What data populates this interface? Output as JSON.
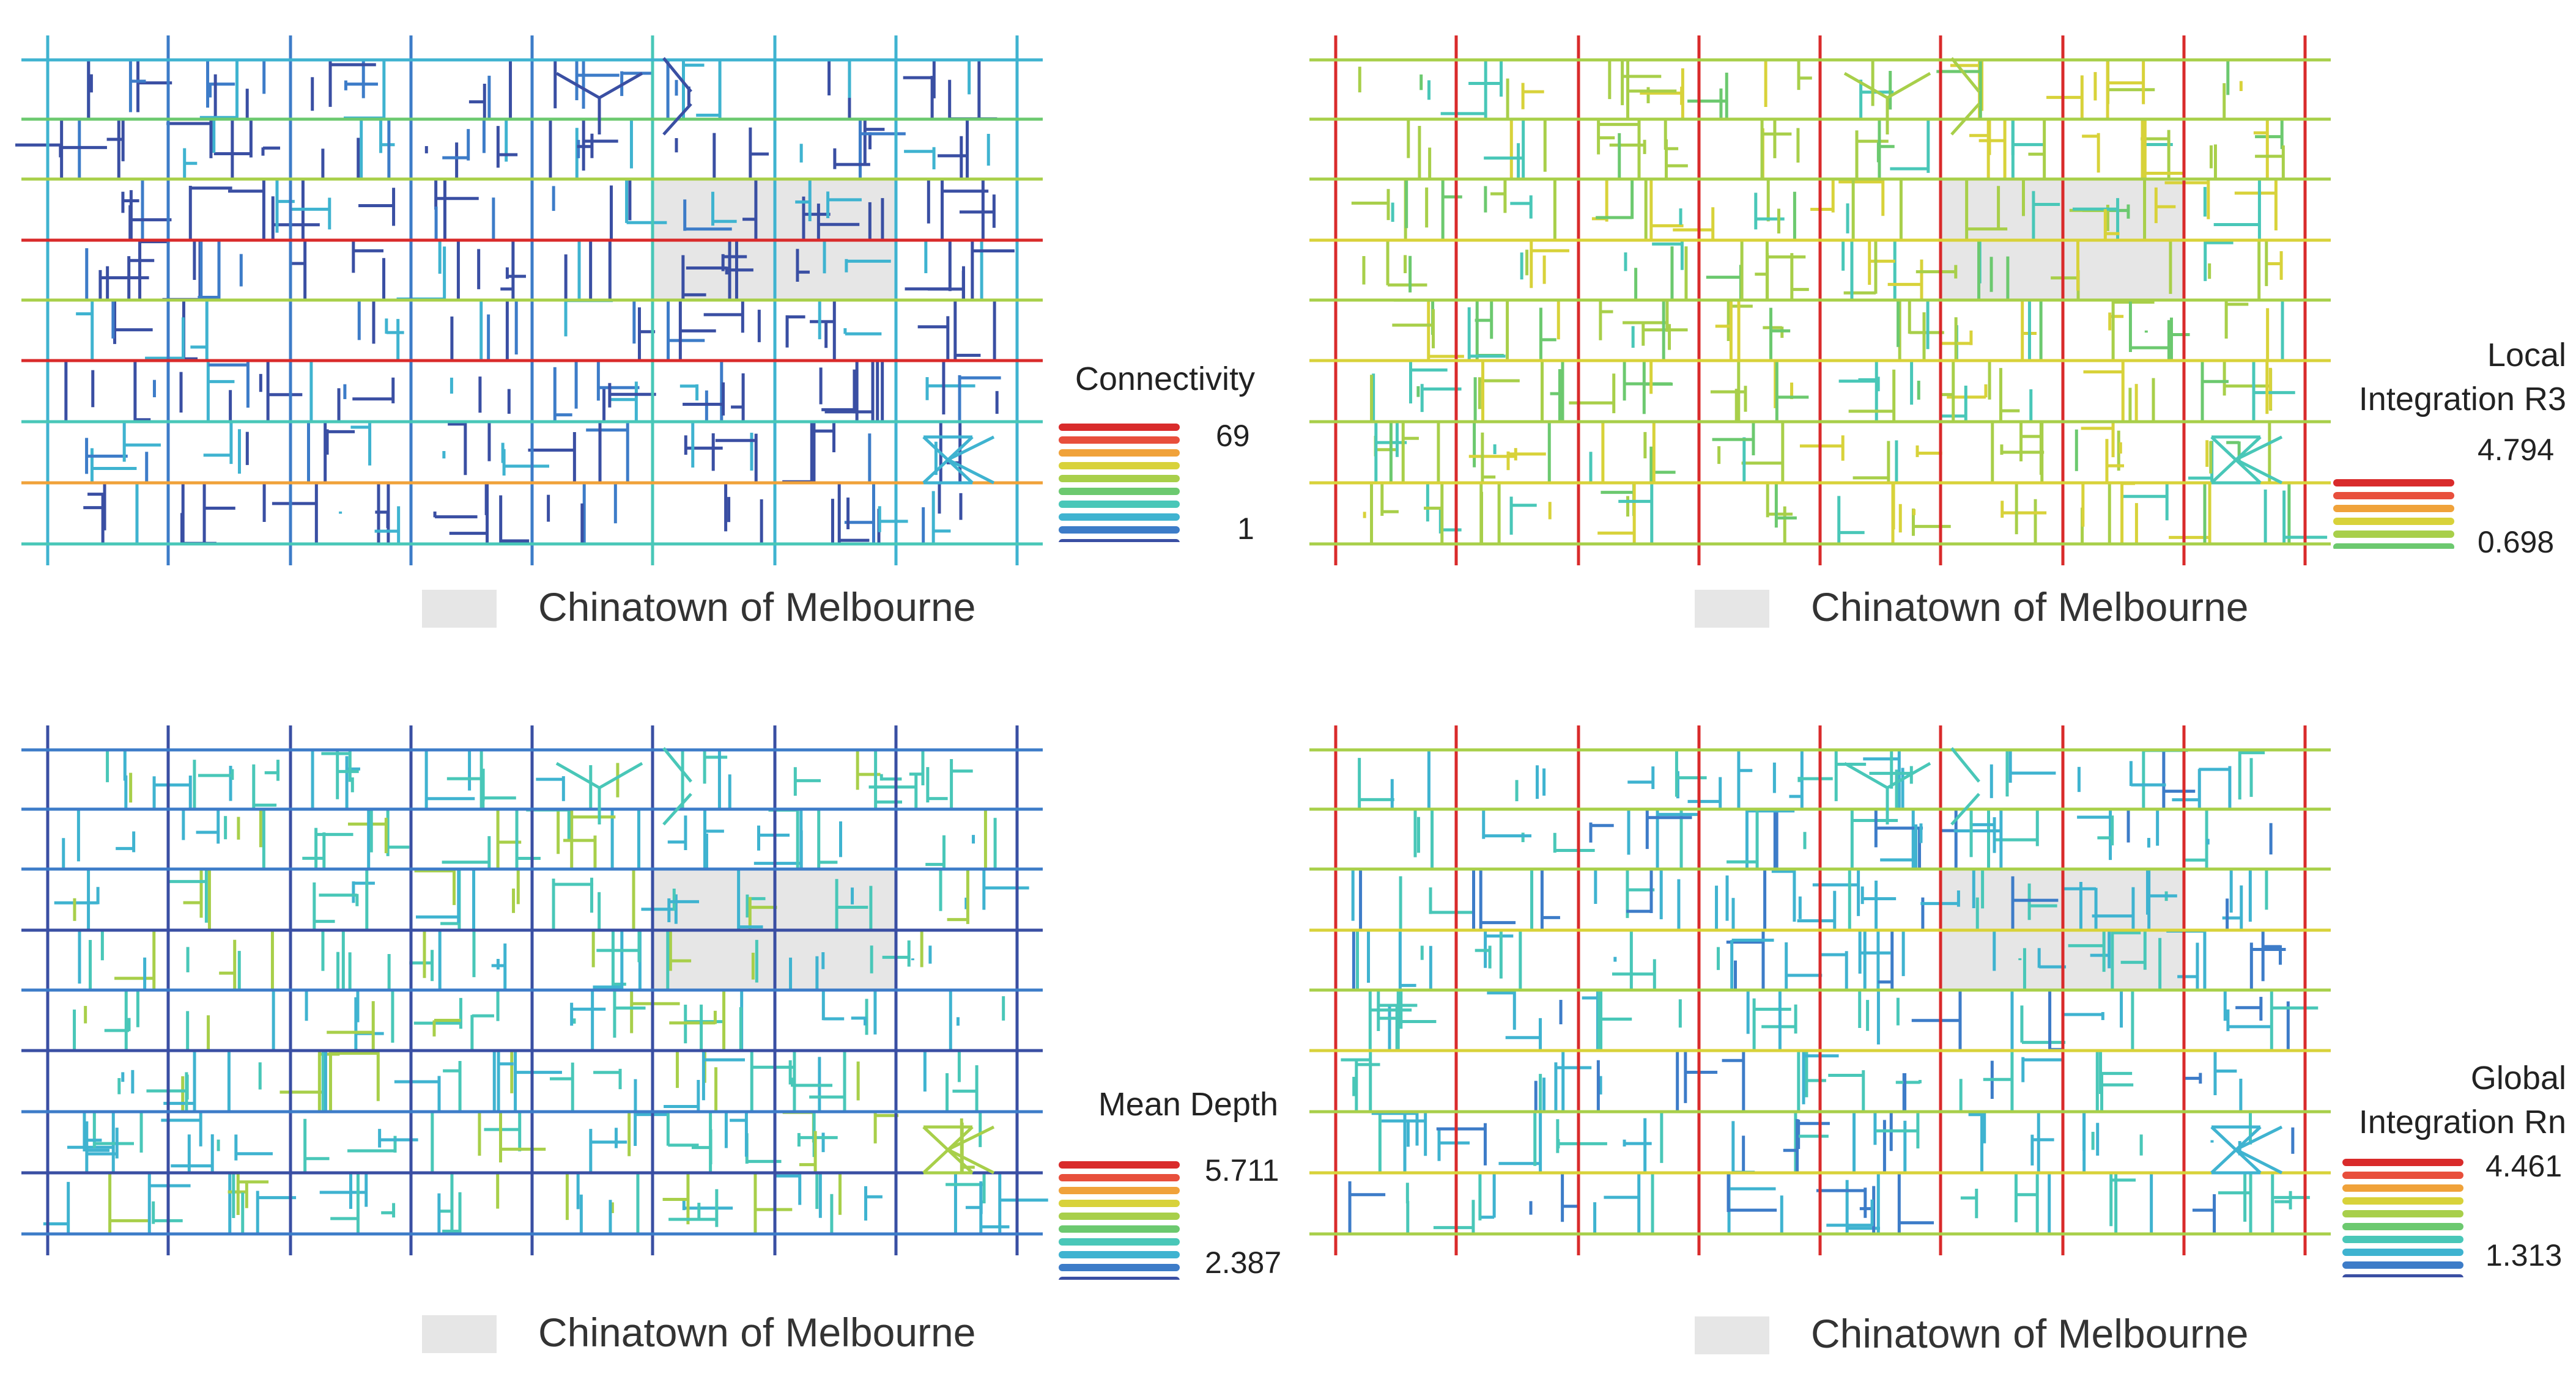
{
  "figure": {
    "area_label": "Chinatown of Melbourne",
    "area_color": "#e6e6e6",
    "palette": [
      "#3a4fa3",
      "#3d7cc8",
      "#3fb3d0",
      "#49c7b8",
      "#6cc96f",
      "#a8cf4a",
      "#d8d23a",
      "#f0a23a",
      "#e84f3c",
      "#d92b2b"
    ]
  },
  "panels": [
    {
      "id": "connectivity",
      "legend_title": [
        "Connectivity"
      ],
      "max": "69",
      "min": "1",
      "grid_h": [
        2,
        4,
        5,
        9,
        5,
        9,
        3,
        7,
        3
      ],
      "grid_v": [
        2,
        1,
        1,
        1,
        1,
        3,
        2,
        2,
        2
      ],
      "grid_v_extra": [
        3,
        2,
        3
      ],
      "inner": [
        0,
        0,
        0,
        1,
        2
      ],
      "seed": 11
    },
    {
      "id": "local-integration",
      "legend_title": [
        "Local",
        "Integration R3"
      ],
      "max": "4.794",
      "min": "0.698",
      "grid_h": [
        5,
        5,
        5,
        6,
        5,
        6,
        5,
        6,
        5
      ],
      "grid_v": [
        9,
        9,
        9,
        9,
        9,
        9,
        9,
        9,
        9
      ],
      "grid_v_extra": [
        9,
        9
      ],
      "inner": [
        4,
        5,
        5,
        6,
        3
      ],
      "seed": 23
    },
    {
      "id": "mean-depth",
      "legend_title": [
        "Mean Depth"
      ],
      "max": "5.711",
      "min": "2.387",
      "grid_h": [
        1,
        1,
        1,
        0,
        1,
        0,
        1,
        0,
        1
      ],
      "grid_v": [
        0,
        0,
        0,
        0,
        0,
        0,
        0,
        0,
        0
      ],
      "grid_v_extra": [
        0,
        0
      ],
      "inner": [
        2,
        3,
        3,
        2,
        5
      ],
      "seed": 37
    },
    {
      "id": "global-integration",
      "legend_title": [
        "Global",
        "Integration Rn"
      ],
      "max": "4.461",
      "min": "1.313",
      "grid_h": [
        5,
        5,
        5,
        6,
        5,
        6,
        5,
        6,
        5
      ],
      "grid_v": [
        9,
        9,
        9,
        9,
        9,
        9,
        9,
        9,
        9
      ],
      "grid_v_extra": [
        9,
        9
      ],
      "inner": [
        2,
        3,
        3,
        1,
        2
      ],
      "seed": 51
    }
  ]
}
